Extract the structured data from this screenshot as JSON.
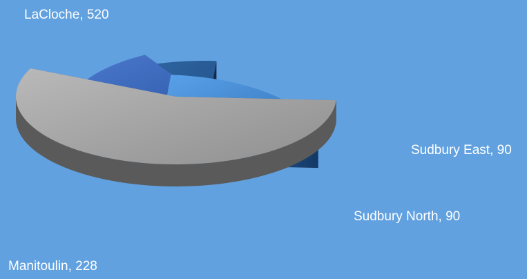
{
  "chart_data": {
    "type": "pie",
    "style": "3d-exploded",
    "title": "",
    "background": "#61a1e0",
    "categories": [
      "LaCloche",
      "Sudbury East",
      "Sudbury North",
      "Manitoulin"
    ],
    "values": [
      520,
      90,
      90,
      228
    ],
    "colors": [
      "#a8a8a8",
      "#3f6cc0",
      "#2b5a92",
      "#4a8fd6"
    ],
    "data_labels": [
      {
        "category": "LaCloche",
        "value": 520,
        "text": "LaCloche, 520"
      },
      {
        "category": "Sudbury East",
        "value": 90,
        "text": "Sudbury East, 90"
      },
      {
        "category": "Sudbury North",
        "value": 90,
        "text": "Sudbury North, 90"
      },
      {
        "category": "Manitoulin",
        "value": 228,
        "text": "Manitoulin, 228"
      }
    ],
    "legend": "none"
  }
}
